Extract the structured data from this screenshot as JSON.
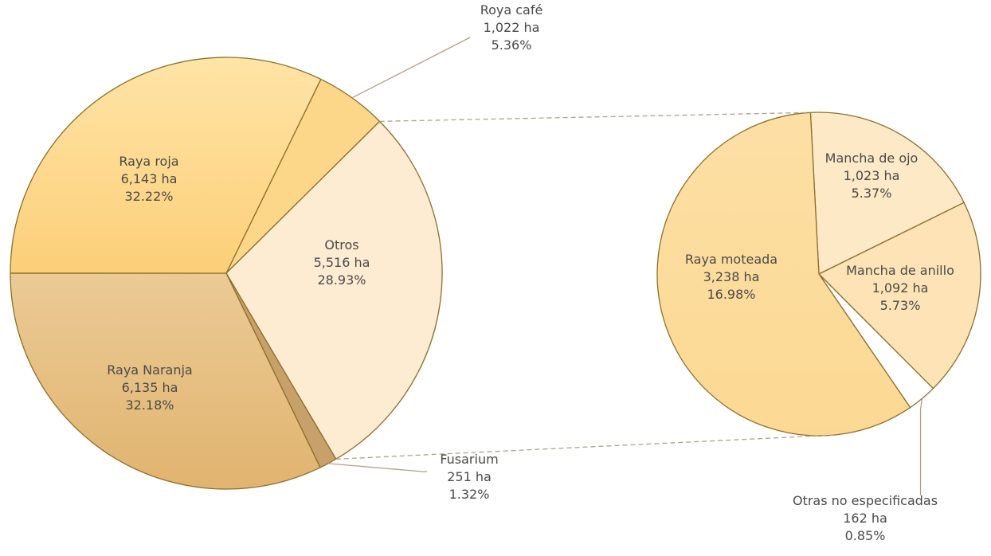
{
  "chart_data": [
    {
      "type": "pie",
      "slices": [
        {
          "name": "Roya café",
          "value": 1022,
          "display_value": "1,022 ha",
          "percent": "5.36%",
          "color": "#fcd689"
        },
        {
          "name": "Otros",
          "value": 5516,
          "display_value": "5,516 ha",
          "percent": "28.93%",
          "color": "#fdebd2"
        },
        {
          "name": "Fusarium",
          "value": 251,
          "display_value": "251 ha",
          "percent": "1.32%",
          "color": "#c8a06a"
        },
        {
          "name": "Raya Naranja",
          "value": 6135,
          "display_value": "6,135 ha",
          "percent": "32.18%",
          "color": "#e3ba7d"
        },
        {
          "name": "Raya roja",
          "value": 6143,
          "display_value": "6,143 ha",
          "percent": "32.22%",
          "color": "#fdd383"
        }
      ]
    },
    {
      "type": "pie",
      "slices": [
        {
          "name": "Mancha de ojo",
          "value": 1023,
          "display_value": "1,023 ha",
          "percent": "5.37%",
          "color": "#fde9c6"
        },
        {
          "name": "Mancha de anillo",
          "value": 1092,
          "display_value": "1,092 ha",
          "percent": "5.73%",
          "color": "#fde3b6"
        },
        {
          "name": "Otras no especificadas",
          "value": 162,
          "display_value": "162 ha",
          "percent": "0.85%",
          "color": "#ffffff"
        },
        {
          "name": "Raya moteada",
          "value": 3238,
          "display_value": "3,238 ha",
          "percent": "16.98%",
          "color": "#fde0a6"
        }
      ]
    }
  ],
  "colors": {
    "stroke": "#8c6f2c",
    "leader": "#b0a189",
    "text": "#4a4a4a"
  }
}
